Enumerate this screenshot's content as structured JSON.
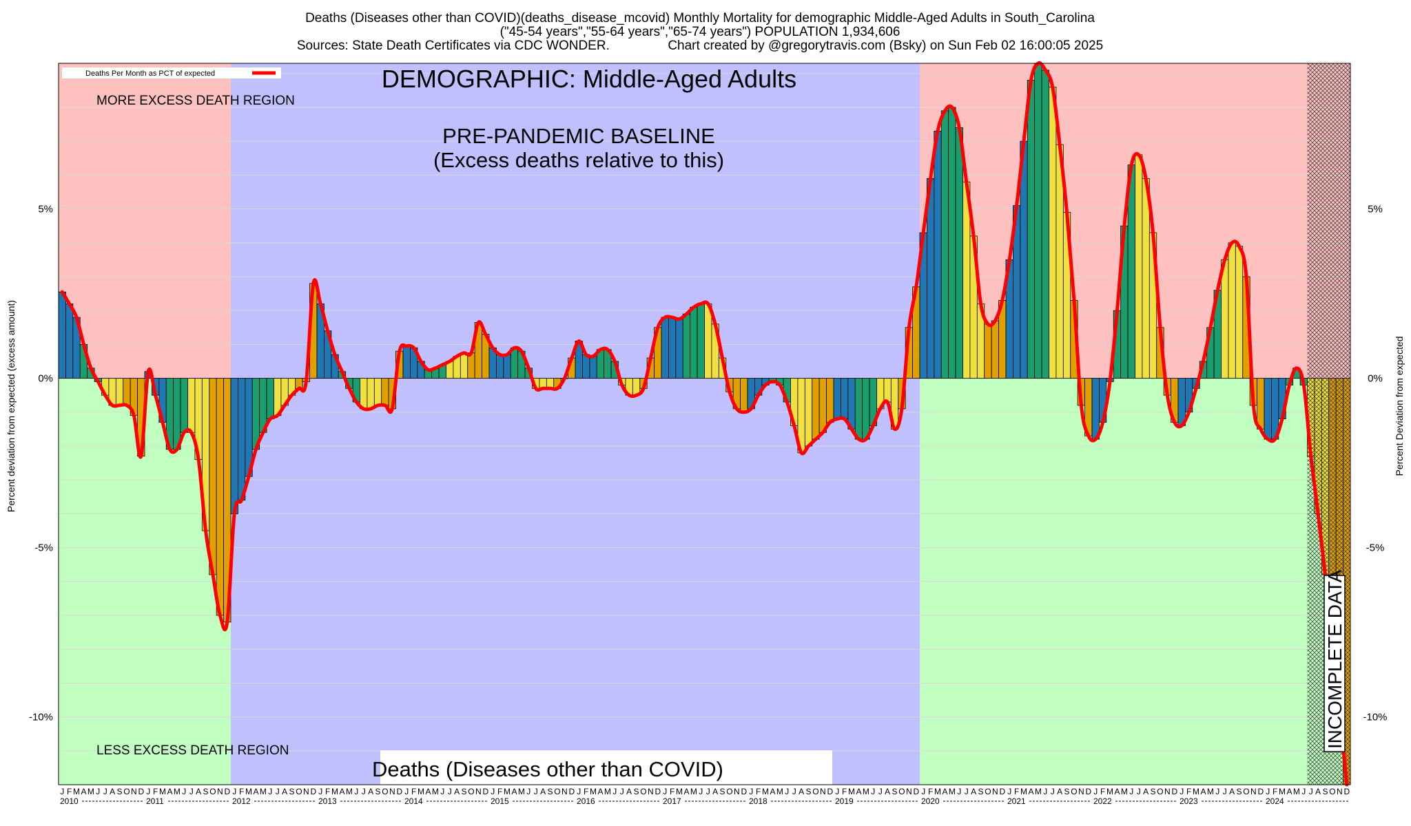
{
  "title_lines": [
    "Deaths (Diseases other than COVID)(deaths_disease_mcovid) Monthly Mortality for demographic Middle-Aged Adults in South_Carolina",
    "(\"45-54 years\",\"55-64 years\",\"65-74 years\") POPULATION 1,934,606",
    "Sources: State Death Certificates via CDC WONDER.                Chart created by @gregorytravis.com (Bsky) on Sun Feb 02 16:00:05 2025"
  ],
  "chart_data": {
    "type": "bar",
    "subtype": "monthly bars with smoothed line overlay",
    "ylabel_left": "Percent deviation from expected (excess amount)",
    "ylabel_right": "Percent Deviation from expected",
    "ylim": [
      -12,
      9.3
    ],
    "y_ticks": [
      5,
      0,
      -5,
      -10
    ],
    "y_tick_labels": [
      "5%",
      "0%",
      "-5%",
      "-10%"
    ],
    "x_start": "2010-01",
    "x_end": "2024-12",
    "month_letters": [
      "J",
      "F",
      "M",
      "A",
      "M",
      "J",
      "J",
      "A",
      "S",
      "O",
      "N",
      "D"
    ],
    "years": [
      "2010",
      "2011",
      "2012",
      "2013",
      "2014",
      "2015",
      "2016",
      "2017",
      "2018",
      "2019",
      "2020",
      "2021",
      "2022",
      "2023",
      "2024"
    ],
    "legend": {
      "label": "Deaths Per Month as PCT of expected",
      "position": "top-left",
      "color": "#ff0000"
    },
    "bar_colors": [
      "#1f77b4",
      "#1a9e6e",
      "#f0e040",
      "#e0a000"
    ],
    "line_color": "#ff0000",
    "background_regions": [
      {
        "from": "2010-01",
        "to": "2011-12",
        "above": "#ffc0c0",
        "below": "#c0ffc0"
      },
      {
        "from": "2012-01",
        "to": "2019-12",
        "color": "#c0c0ff"
      },
      {
        "from": "2020-01",
        "to": "2024-12",
        "above": "#ffc0c0",
        "below": "#c0ffc0"
      }
    ],
    "incomplete_from": "2024-07",
    "values": [
      2.55,
      2.2,
      1.8,
      1.0,
      0.3,
      -0.1,
      -0.5,
      -0.8,
      -0.8,
      -0.8,
      -1.1,
      -2.3,
      0.2,
      -0.5,
      -1.3,
      -2.1,
      -2.1,
      -1.6,
      -1.6,
      -2.4,
      -4.5,
      -5.8,
      -7.0,
      -7.2,
      -4.0,
      -3.6,
      -2.9,
      -2.1,
      -1.6,
      -1.2,
      -1.1,
      -0.8,
      -0.5,
      -0.3,
      -0.1,
      2.8,
      2.2,
      1.4,
      0.7,
      0.2,
      -0.3,
      -0.7,
      -0.9,
      -0.9,
      -0.8,
      -0.8,
      -0.9,
      0.8,
      0.95,
      0.9,
      0.5,
      0.25,
      0.3,
      0.4,
      0.5,
      0.65,
      0.75,
      0.75,
      1.65,
      1.3,
      0.9,
      0.7,
      0.7,
      0.9,
      0.8,
      0.3,
      -0.3,
      -0.3,
      -0.3,
      -0.3,
      0.0,
      0.6,
      1.1,
      0.7,
      0.65,
      0.85,
      0.85,
      0.5,
      -0.2,
      -0.5,
      -0.5,
      -0.3,
      0.6,
      1.5,
      1.8,
      1.8,
      1.75,
      1.9,
      2.1,
      2.2,
      2.2,
      1.6,
      0.6,
      -0.4,
      -0.9,
      -1.0,
      -0.9,
      -0.5,
      -0.2,
      -0.1,
      -0.2,
      -0.7,
      -1.4,
      -2.2,
      -2.0,
      -1.8,
      -1.6,
      -1.3,
      -1.2,
      -1.2,
      -1.5,
      -1.8,
      -1.8,
      -1.4,
      -0.9,
      -0.7,
      -1.5,
      -0.9,
      1.5,
      2.7,
      4.3,
      5.9,
      7.3,
      7.9,
      8.0,
      7.4,
      5.8,
      4.2,
      2.2,
      1.6,
      1.7,
      2.3,
      3.5,
      5.1,
      7.0,
      8.8,
      9.3,
      9.1,
      8.6,
      6.9,
      4.9,
      2.3,
      -0.8,
      -1.7,
      -1.8,
      -1.3,
      -0.1,
      2.0,
      4.5,
      6.3,
      6.6,
      5.9,
      4.3,
      1.5,
      -0.5,
      -1.3,
      -1.4,
      -1.0,
      -0.3,
      0.5,
      1.5,
      2.6,
      3.5,
      4.0,
      3.9,
      3.0,
      -0.8,
      -1.5,
      -1.8,
      -1.8,
      -1.2,
      -0.2,
      0.3,
      -0.2,
      -2.3,
      -4.0,
      -5.8,
      -7.6,
      -9.8,
      -12.0
    ]
  },
  "annotations": {
    "demographic": "DEMOGRAPHIC: Middle-Aged Adults",
    "more_region": "MORE EXCESS DEATH REGION",
    "less_region": "LESS EXCESS DEATH REGION",
    "baseline_line1": "PRE-PANDEMIC BASELINE",
    "baseline_line2": "(Excess deaths relative to this)",
    "bottom_title": "Deaths (Diseases other than COVID)",
    "incomplete": "INCOMPLETE DATA"
  }
}
